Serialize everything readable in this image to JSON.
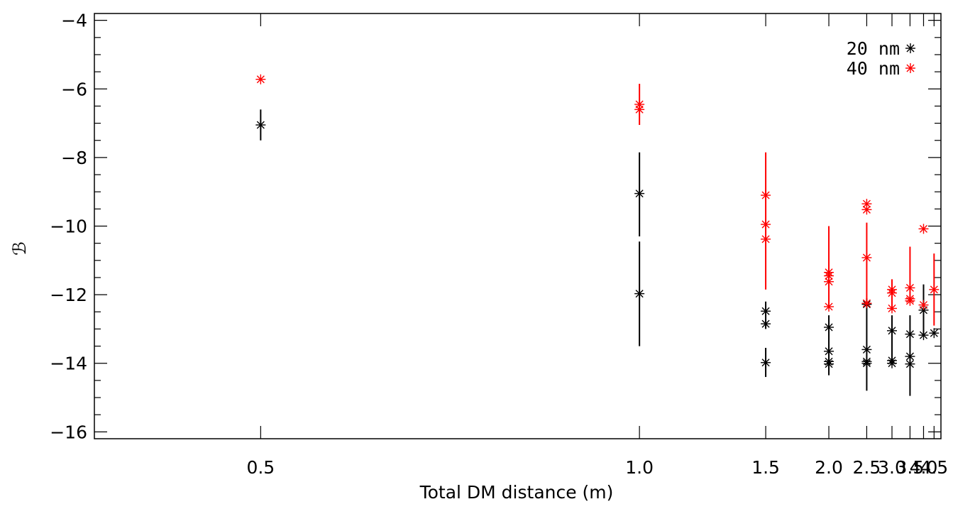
{
  "chart_data": {
    "type": "scatter",
    "xlabel": "Total DM distance (m)",
    "ylabel": "ℬ",
    "x_scale": "reciprocal",
    "xlim": [
      0.41,
      4.9
    ],
    "ylim": [
      -16.2,
      -3.8
    ],
    "x_ticks": [
      0.5,
      1.0,
      1.5,
      2.0,
      2.5,
      3.0,
      3.5,
      4.0,
      4.5
    ],
    "x_tick_labels": [
      "0.5",
      "1.0",
      "1.5",
      "2.0",
      "2.5",
      "3.0",
      "3.5",
      "4.0",
      "4.5"
    ],
    "y_ticks": [
      -4,
      -6,
      -8,
      -10,
      -12,
      -14,
      -16
    ],
    "y_tick_labels": [
      "−4",
      "−6",
      "−8",
      "−10",
      "−12",
      "−14",
      "−16"
    ],
    "y_minor_step": 0.5,
    "grid": false,
    "legend_position": "top-right",
    "series": [
      {
        "name": "20 nm",
        "color": "#000000",
        "points": [
          {
            "x": 0.5,
            "y": -7.05
          },
          {
            "x": 1.0,
            "y": -9.05
          },
          {
            "x": 1.0,
            "y": -11.97
          },
          {
            "x": 1.5,
            "y": -12.48
          },
          {
            "x": 1.5,
            "y": -12.85
          },
          {
            "x": 1.5,
            "y": -13.98
          },
          {
            "x": 2.0,
            "y": -12.95
          },
          {
            "x": 2.0,
            "y": -13.65
          },
          {
            "x": 2.0,
            "y": -13.95
          },
          {
            "x": 2.0,
            "y": -14.02
          },
          {
            "x": 2.5,
            "y": -12.28
          },
          {
            "x": 2.5,
            "y": -13.6
          },
          {
            "x": 2.5,
            "y": -13.95
          },
          {
            "x": 2.5,
            "y": -14.0
          },
          {
            "x": 3.0,
            "y": -13.05
          },
          {
            "x": 3.0,
            "y": -13.92
          },
          {
            "x": 3.0,
            "y": -14.0
          },
          {
            "x": 3.5,
            "y": -13.15
          },
          {
            "x": 3.5,
            "y": -13.8
          },
          {
            "x": 3.5,
            "y": -14.02
          },
          {
            "x": 4.0,
            "y": -12.45
          },
          {
            "x": 4.0,
            "y": -13.18
          },
          {
            "x": 4.5,
            "y": -13.12
          }
        ],
        "error_bars": [
          {
            "x": 0.5,
            "low": -7.5,
            "high": -6.6
          },
          {
            "x": 1.0,
            "low": -10.3,
            "high": -7.85
          },
          {
            "x": 1.0,
            "low": -13.5,
            "high": -10.45
          },
          {
            "x": 1.5,
            "low": -14.4,
            "high": -13.55
          },
          {
            "x": 1.5,
            "low": -13.0,
            "high": -12.2
          },
          {
            "x": 2.0,
            "low": -14.35,
            "high": -12.6
          },
          {
            "x": 2.5,
            "low": -14.8,
            "high": -12.1
          },
          {
            "x": 3.0,
            "low": -14.0,
            "high": -12.6
          },
          {
            "x": 3.5,
            "low": -14.95,
            "high": -12.6
          },
          {
            "x": 4.0,
            "low": -13.2,
            "high": -11.7
          }
        ]
      },
      {
        "name": "40 nm",
        "color": "#ff0000",
        "points": [
          {
            "x": 0.5,
            "y": -5.72
          },
          {
            "x": 1.0,
            "y": -6.45
          },
          {
            "x": 1.0,
            "y": -6.6
          },
          {
            "x": 1.5,
            "y": -9.1
          },
          {
            "x": 1.5,
            "y": -9.95
          },
          {
            "x": 1.5,
            "y": -10.38
          },
          {
            "x": 2.0,
            "y": -11.35
          },
          {
            "x": 2.0,
            "y": -11.45
          },
          {
            "x": 2.0,
            "y": -11.62
          },
          {
            "x": 2.0,
            "y": -12.35
          },
          {
            "x": 2.5,
            "y": -9.35
          },
          {
            "x": 2.5,
            "y": -9.52
          },
          {
            "x": 2.5,
            "y": -10.92
          },
          {
            "x": 2.5,
            "y": -12.25
          },
          {
            "x": 3.0,
            "y": -11.85
          },
          {
            "x": 3.0,
            "y": -11.95
          },
          {
            "x": 3.0,
            "y": -12.4
          },
          {
            "x": 3.5,
            "y": -11.8
          },
          {
            "x": 3.5,
            "y": -12.12
          },
          {
            "x": 3.5,
            "y": -12.18
          },
          {
            "x": 4.0,
            "y": -10.08
          },
          {
            "x": 4.0,
            "y": -12.3
          },
          {
            "x": 4.5,
            "y": -11.85
          }
        ],
        "error_bars": [
          {
            "x": 1.0,
            "low": -7.05,
            "high": -5.85
          },
          {
            "x": 1.5,
            "low": -11.85,
            "high": -7.85
          },
          {
            "x": 2.0,
            "low": -12.4,
            "high": -10.0
          },
          {
            "x": 2.5,
            "low": -12.35,
            "high": -9.9
          },
          {
            "x": 3.0,
            "low": -12.45,
            "high": -11.55
          },
          {
            "x": 3.5,
            "low": -12.2,
            "high": -10.6
          },
          {
            "x": 4.5,
            "low": -12.9,
            "high": -10.8
          }
        ]
      }
    ]
  }
}
